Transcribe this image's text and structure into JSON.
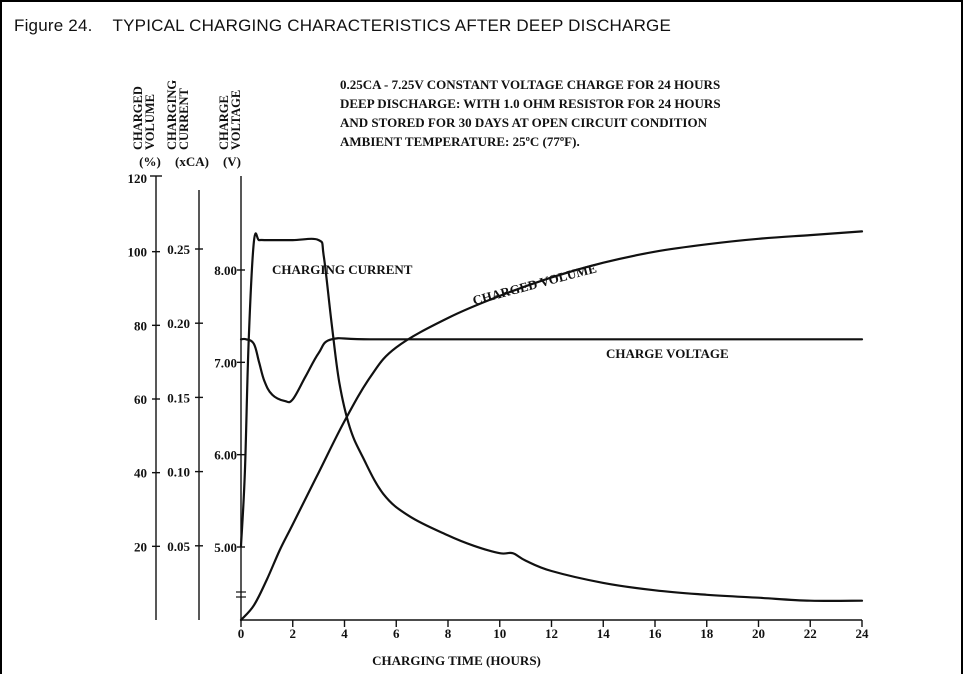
{
  "figure": {
    "number": "Figure 24.",
    "title": "TYPICAL CHARGING CHARACTERISTICS AFTER DEEP DISCHARGE"
  },
  "chart_data": {
    "type": "line",
    "conditions": [
      "0.25CA - 7.25V CONSTANT VOLTAGE CHARGE FOR 24 HOURS",
      "DEEP DISCHARGE: WITH 1.0 OHM RESISTOR FOR 24 HOURS",
      "AND STORED FOR 30 DAYS AT OPEN CIRCUIT CONDITION",
      "AMBIENT TEMPERATURE:  25ºC (77ºF)."
    ],
    "xlabel": "CHARGING TIME (HOURS)",
    "x_ticks": [
      0,
      2,
      4,
      6,
      8,
      10,
      12,
      14,
      16,
      18,
      20,
      22,
      24
    ],
    "xlim": [
      0,
      24
    ],
    "axes": {
      "volume": {
        "title_lines": [
          "CHARGED",
          "VOLUME"
        ],
        "unit": "(%)",
        "ticks": [
          20,
          40,
          60,
          80,
          100,
          120
        ],
        "range": [
          0,
          120
        ]
      },
      "current": {
        "title_lines": [
          "CHARGING",
          "CURRENT"
        ],
        "unit": "(xCA)",
        "ticks": [
          "0.05",
          "0.10",
          "0.15",
          "0.20",
          "0.25"
        ],
        "range": [
          0,
          0.3
        ]
      },
      "voltage": {
        "title_lines": [
          "CHARGE",
          "VOLTAGE"
        ],
        "unit": "(V)",
        "ticks": [
          "5.00",
          "6.00",
          "7.00",
          "8.00"
        ],
        "range": [
          4.2,
          9.5
        ]
      }
    },
    "series": [
      {
        "name": "CHARGING CURRENT",
        "axis": "current",
        "x": [
          0,
          0.15,
          0.3,
          0.5,
          0.7,
          1,
          2,
          3,
          3.2,
          3.5,
          3.8,
          4.2,
          4.7,
          5.5,
          6.5,
          8,
          9,
          10,
          10.5,
          11,
          12,
          14,
          16,
          18,
          20,
          22,
          24
        ],
        "y": [
          0.05,
          0.1,
          0.19,
          0.255,
          0.256,
          0.256,
          0.256,
          0.256,
          0.245,
          0.2,
          0.16,
          0.13,
          0.11,
          0.085,
          0.07,
          0.057,
          0.05,
          0.045,
          0.045,
          0.04,
          0.033,
          0.025,
          0.02,
          0.017,
          0.015,
          0.013,
          0.013
        ]
      },
      {
        "name": "CHARGED VOLUME",
        "axis": "volume",
        "x": [
          0,
          0.5,
          1,
          1.5,
          2,
          3,
          4,
          5,
          6,
          8,
          10,
          12,
          14,
          16,
          18,
          20,
          22,
          24
        ],
        "y": [
          0,
          4,
          11,
          19,
          26,
          40,
          54,
          66,
          74,
          82,
          88,
          93,
          97,
          100,
          102,
          103.5,
          104.5,
          105.5
        ]
      },
      {
        "name": "CHARGE VOLTAGE",
        "axis": "voltage",
        "x": [
          0,
          0.2,
          0.5,
          0.7,
          0.9,
          1.2,
          1.7,
          2.0,
          2.5,
          3.0,
          3.5,
          5,
          10,
          24
        ],
        "y": [
          7.25,
          7.25,
          7.2,
          7.0,
          6.8,
          6.65,
          6.58,
          6.6,
          6.85,
          7.1,
          7.25,
          7.25,
          7.25,
          7.25
        ]
      }
    ],
    "labels": {
      "charging_current": "CHARGING CURRENT",
      "charged_volume": "CHARGED VOLUME",
      "charge_voltage": "CHARGE VOLTAGE"
    }
  }
}
